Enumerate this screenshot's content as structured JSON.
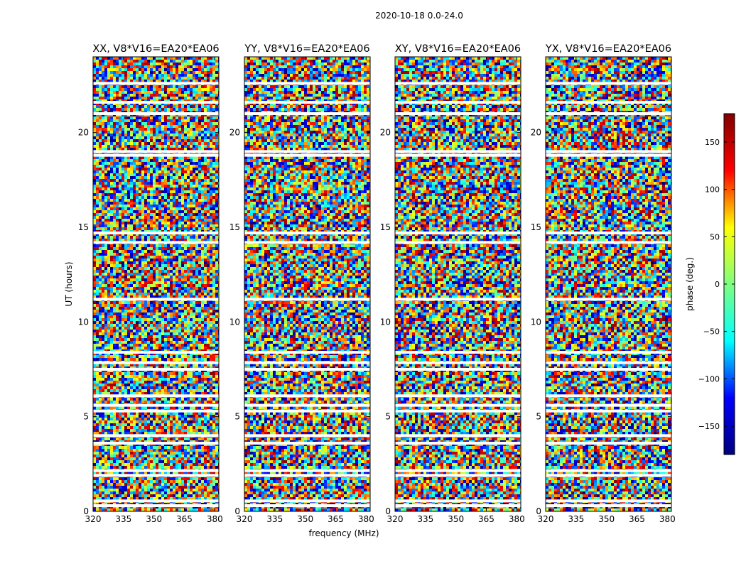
{
  "figure": {
    "suptitle": "2020-10-18 0.0-24.0",
    "xlabel": "frequency (MHz)",
    "ylabel": "UT (hours)"
  },
  "chart_data": [
    {
      "type": "heatmap",
      "title": "XX, V8*V16=EA20*EA06",
      "xlim": [
        320,
        382
      ],
      "ylim": [
        0,
        24
      ],
      "xticks": [
        320,
        335,
        350,
        365,
        380
      ],
      "yticks": [
        0,
        5,
        10,
        15,
        20
      ],
      "value": "phase (deg.)",
      "gaps_hours": [
        0.3,
        0.55,
        1.9,
        2.15,
        3.6,
        4.0,
        5.3,
        5.6,
        6.1,
        7.5,
        7.85,
        8.4,
        11.2,
        14.2,
        14.7,
        18.8,
        19.0,
        21.0,
        21.6,
        22.6
      ]
    },
    {
      "type": "heatmap",
      "title": "YY, V8*V16=EA20*EA06",
      "xlim": [
        320,
        382
      ],
      "ylim": [
        0,
        24
      ],
      "xticks": [
        320,
        335,
        350,
        365,
        380
      ],
      "yticks": [
        0,
        5,
        10,
        15,
        20
      ],
      "value": "phase (deg.)",
      "gaps_hours": [
        0.3,
        0.55,
        1.9,
        2.15,
        3.6,
        4.0,
        5.3,
        5.6,
        6.1,
        7.5,
        7.85,
        8.4,
        11.2,
        14.2,
        14.7,
        18.8,
        19.0,
        21.0,
        21.6,
        22.6
      ]
    },
    {
      "type": "heatmap",
      "title": "XY, V8*V16=EA20*EA06",
      "xlim": [
        320,
        382
      ],
      "ylim": [
        0,
        24
      ],
      "xticks": [
        320,
        335,
        350,
        365,
        380
      ],
      "yticks": [
        0,
        5,
        10,
        15,
        20
      ],
      "value": "phase (deg.)",
      "gaps_hours": [
        0.3,
        0.55,
        1.9,
        2.15,
        3.6,
        4.0,
        5.3,
        5.6,
        6.1,
        7.5,
        7.85,
        8.4,
        11.2,
        14.2,
        14.7,
        18.8,
        19.0,
        21.0,
        21.6,
        22.6
      ]
    },
    {
      "type": "heatmap",
      "title": "YX, V8*V16=EA20*EA06",
      "xlim": [
        320,
        382
      ],
      "ylim": [
        0,
        24
      ],
      "xticks": [
        320,
        335,
        350,
        365,
        380
      ],
      "yticks": [
        0,
        5,
        10,
        15,
        20
      ],
      "value": "phase (deg.)",
      "gaps_hours": [
        0.3,
        0.55,
        1.9,
        2.15,
        3.6,
        4.0,
        5.3,
        5.6,
        6.1,
        7.5,
        7.85,
        8.4,
        11.2,
        14.2,
        14.7,
        18.8,
        19.0,
        21.0,
        21.6,
        22.6
      ]
    }
  ],
  "colorbar": {
    "label": "phase (deg.)",
    "range": [
      -180,
      180
    ],
    "ticks": [
      150,
      100,
      50,
      0,
      -50,
      -100,
      -150
    ],
    "tick_labels": [
      "150",
      "100",
      "50",
      "0",
      "−50",
      "−100",
      "−150"
    ],
    "colormap": "jet",
    "colors": [
      "#000080",
      "#0000ff",
      "#00ffff",
      "#7fff7f",
      "#ffff00",
      "#ff0000",
      "#800000"
    ]
  }
}
